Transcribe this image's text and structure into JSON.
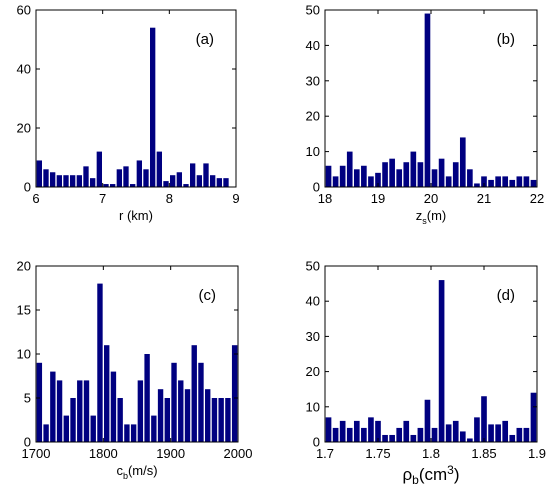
{
  "colors": {
    "bar": "#000080",
    "axis": "#000000",
    "background": "#ffffff"
  },
  "chart_data": [
    {
      "type": "bar",
      "panel_label": "(a)",
      "xlabel": "r (km)",
      "xlim": [
        6,
        9
      ],
      "ylim": [
        0,
        60
      ],
      "xticks": [
        6,
        7,
        8,
        9
      ],
      "yticks": [
        0,
        20,
        40,
        60
      ],
      "bin_edges_start": 6.0,
      "bin_width": 0.1,
      "values": [
        9,
        6,
        5,
        4,
        4,
        4,
        4,
        7,
        3,
        12,
        1,
        1,
        6,
        7,
        1,
        9,
        6,
        54,
        12,
        2,
        4,
        5,
        1,
        8,
        4,
        8,
        4,
        3,
        3,
        0
      ]
    },
    {
      "type": "bar",
      "panel_label": "(b)",
      "xlabel": "z",
      "xlabel_sub": "s",
      "xlabel_suffix": "(m)",
      "xlim": [
        18,
        22
      ],
      "ylim": [
        0,
        50
      ],
      "xticks": [
        18,
        19,
        20,
        21,
        22
      ],
      "yticks": [
        0,
        10,
        20,
        30,
        40,
        50
      ],
      "bin_edges_start": 18.0,
      "bin_width": 0.1333,
      "values": [
        6,
        3,
        6,
        10,
        5,
        6,
        3,
        4,
        7,
        8,
        5,
        7,
        10,
        7,
        49,
        5,
        8,
        3,
        7,
        14,
        5,
        1,
        3,
        2,
        3,
        3,
        2,
        3,
        3,
        2
      ]
    },
    {
      "type": "bar",
      "panel_label": "(c)",
      "xlabel": "c",
      "xlabel_sub": "b",
      "xlabel_suffix": "(m/s)",
      "xlim": [
        1700,
        2000
      ],
      "ylim": [
        0,
        20
      ],
      "xticks": [
        1700,
        1800,
        1900,
        2000
      ],
      "yticks": [
        0,
        5,
        10,
        15,
        20
      ],
      "bin_edges_start": 1700,
      "bin_width": 10,
      "values": [
        9,
        2,
        8,
        7,
        3,
        5,
        7,
        7,
        3,
        18,
        11,
        8,
        5,
        2,
        2,
        7,
        10,
        3,
        6,
        5,
        9,
        7,
        6,
        11,
        9,
        6,
        5,
        5,
        5,
        11
      ]
    },
    {
      "type": "bar",
      "panel_label": "(d)",
      "xlabel": "ρ",
      "xlabel_sub": "b",
      "xlabel_suffix": "(cm",
      "xlabel_sup": "3",
      "xlabel_end": ")",
      "xlim": [
        1.7,
        1.9
      ],
      "ylim": [
        0,
        50
      ],
      "xticks": [
        1.7,
        1.75,
        1.8,
        1.85,
        1.9
      ],
      "yticks": [
        0,
        10,
        20,
        30,
        40,
        50
      ],
      "bin_edges_start": 1.7,
      "bin_width": 0.006667,
      "values": [
        7,
        4,
        6,
        4,
        6,
        4,
        7,
        6,
        2,
        2,
        4,
        6,
        2,
        4,
        12,
        4,
        46,
        5,
        6,
        3,
        1,
        7,
        13,
        5,
        5,
        6,
        2,
        4,
        4,
        14
      ]
    }
  ]
}
